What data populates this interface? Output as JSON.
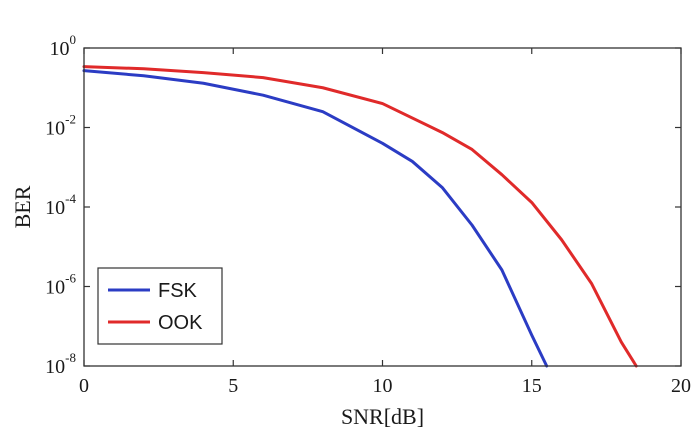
{
  "chart_data": {
    "type": "line",
    "title": "",
    "xlabel": "SNR[dB]",
    "ylabel": "BER",
    "xlim": [
      0,
      20
    ],
    "ylim": [
      1e-08,
      1
    ],
    "yscale": "log",
    "grid": false,
    "legend_position": "bottom-left",
    "x_ticks": [
      0,
      5,
      10,
      15,
      20
    ],
    "x_tick_labels": [
      "0",
      "5",
      "10",
      "15",
      "20"
    ],
    "y_ticks": [
      {
        "value": 1,
        "base": "10",
        "exp": "0"
      },
      {
        "value": 0.01,
        "base": "10",
        "exp": "-2"
      },
      {
        "value": 0.0001,
        "base": "10",
        "exp": "-4"
      },
      {
        "value": 1e-06,
        "base": "10",
        "exp": "-6"
      },
      {
        "value": 1e-08,
        "base": "10",
        "exp": "-8"
      }
    ],
    "series": [
      {
        "name": "FSK",
        "color": "#2b3cc4",
        "x": [
          0,
          2,
          4,
          6,
          8,
          10,
          11,
          12,
          13,
          14,
          15,
          15.5
        ],
        "y": [
          0.27,
          0.2,
          0.13,
          0.065,
          0.025,
          0.004,
          0.0014,
          0.00031,
          3.5e-05,
          2.6e-06,
          6e-08,
          1e-08
        ]
      },
      {
        "name": "OOK",
        "color": "#e02a2a",
        "x": [
          0,
          2,
          4,
          6,
          8,
          10,
          12,
          13,
          14,
          15,
          16,
          17,
          18,
          18.5
        ],
        "y": [
          0.34,
          0.3,
          0.24,
          0.18,
          0.1,
          0.04,
          0.0075,
          0.0028,
          0.00065,
          0.00013,
          1.5e-05,
          1.2e-06,
          4e-08,
          1e-08
        ]
      }
    ]
  }
}
